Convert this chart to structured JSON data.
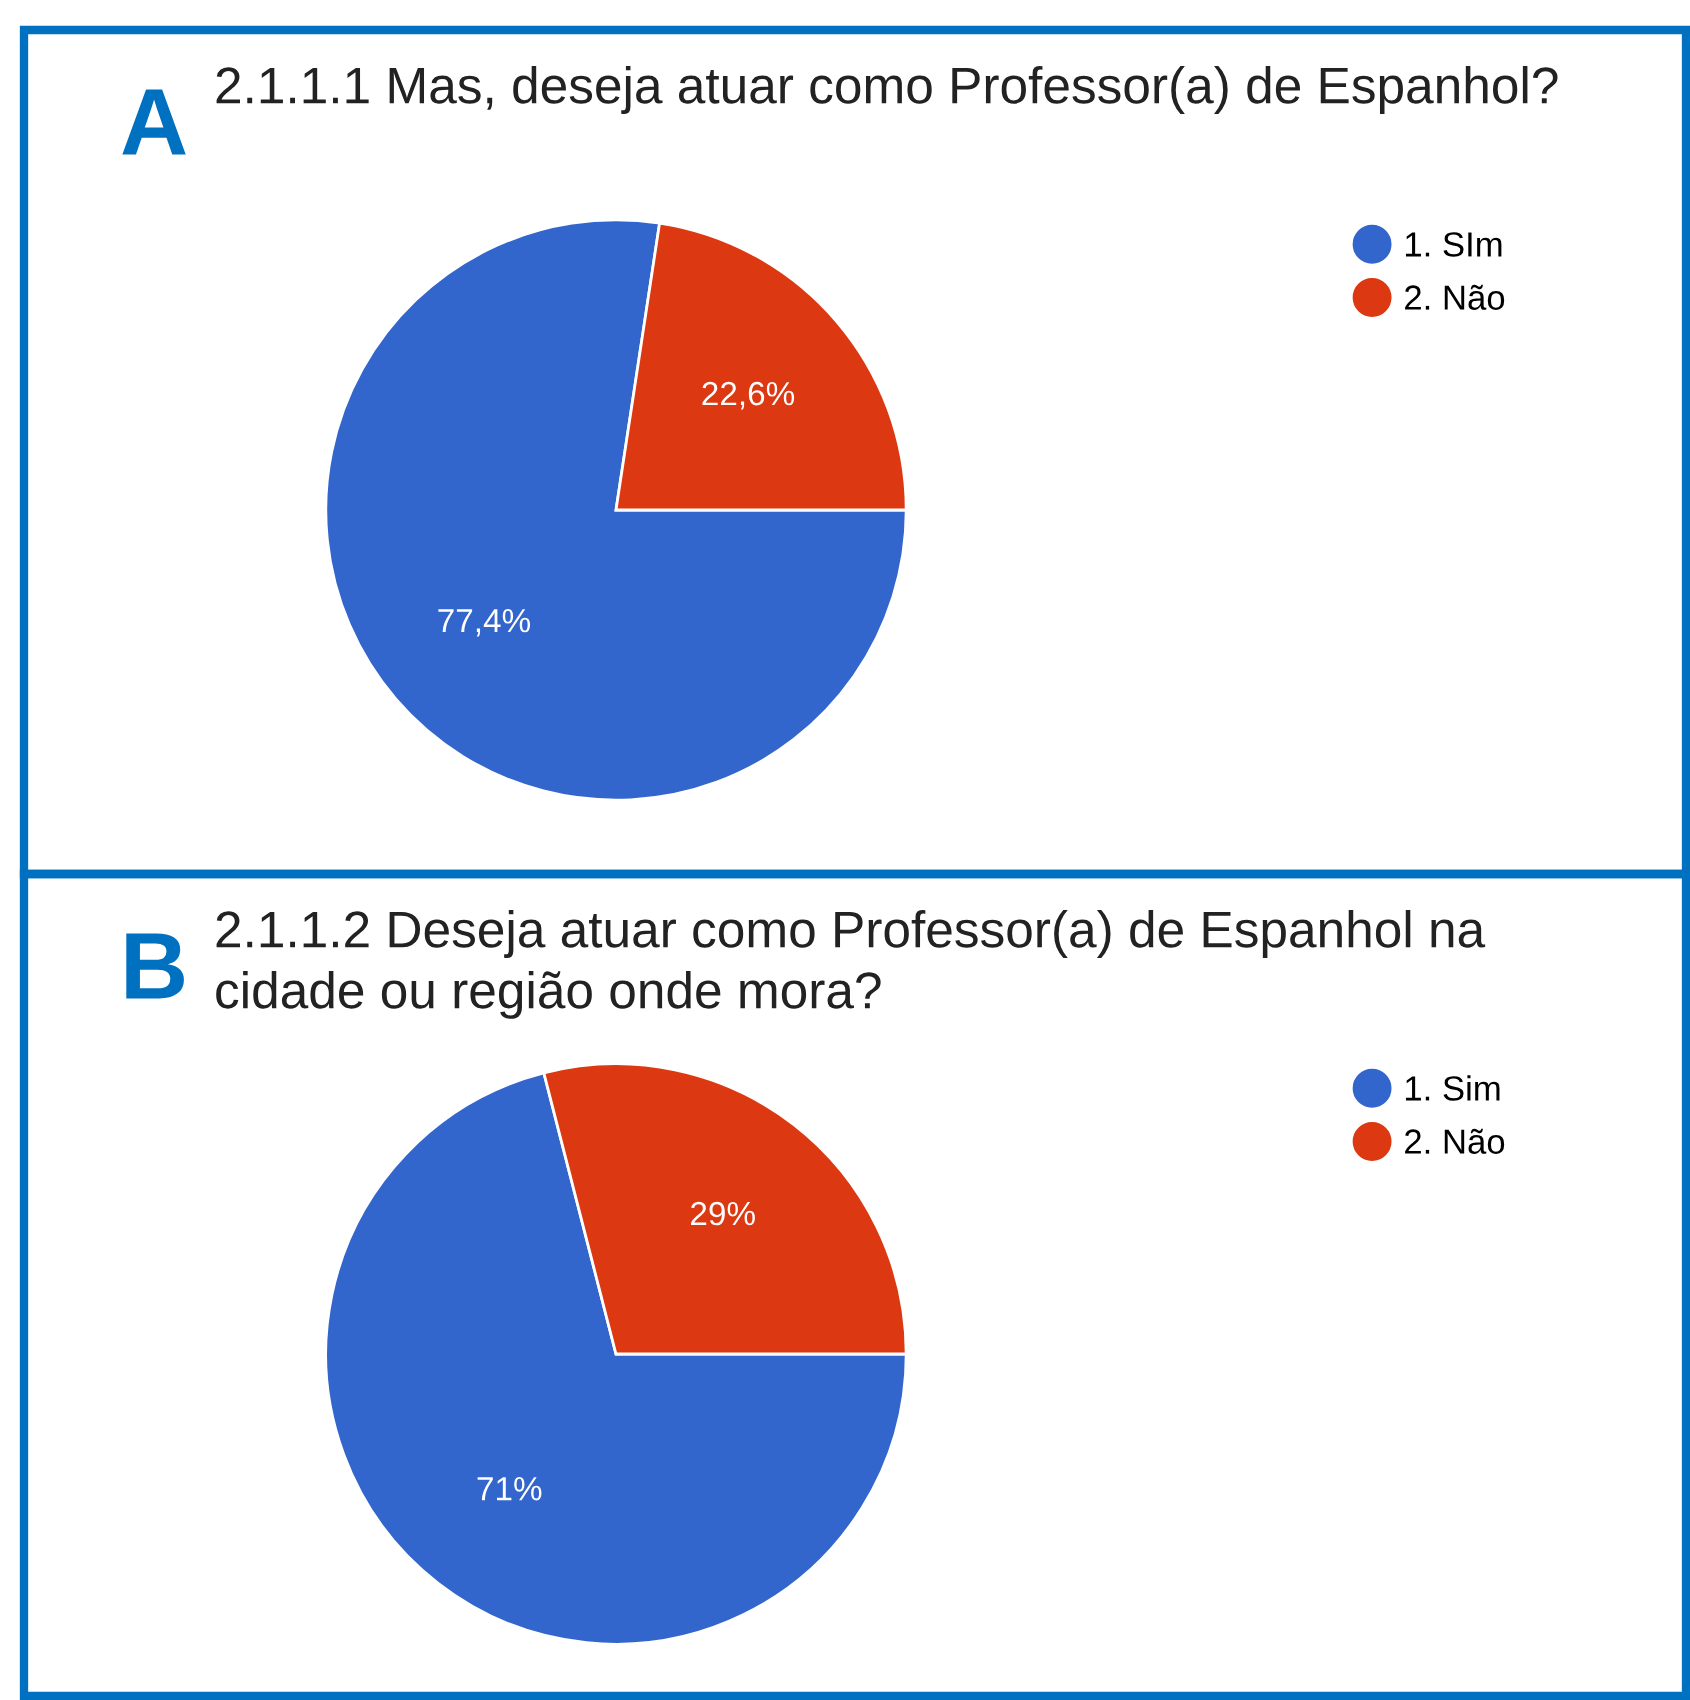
{
  "chart_data": [
    {
      "type": "pie",
      "title": "2.1.1.1 Mas, deseja atuar como Professor(a) de Espanhol?",
      "annotations": [
        "A"
      ],
      "categories": [
        "1. SIm",
        "2. Não"
      ],
      "values": [
        77.4,
        22.6
      ],
      "colors": [
        "#3366cc",
        "#dc3912"
      ],
      "value_labels": [
        "77,4%",
        "22,6%"
      ],
      "legend": "top right"
    },
    {
      "type": "pie",
      "title": "2.1.1.2 Deseja atuar como Professor(a) de Espanhol na cidade ou região onde mora?",
      "annotations": [
        "B"
      ],
      "categories": [
        "1. Sim",
        "2. Não"
      ],
      "values": [
        71,
        29
      ],
      "colors": [
        "#3366cc",
        "#dc3912"
      ],
      "value_labels": [
        "71%",
        "29%"
      ],
      "legend": "top right"
    }
  ]
}
